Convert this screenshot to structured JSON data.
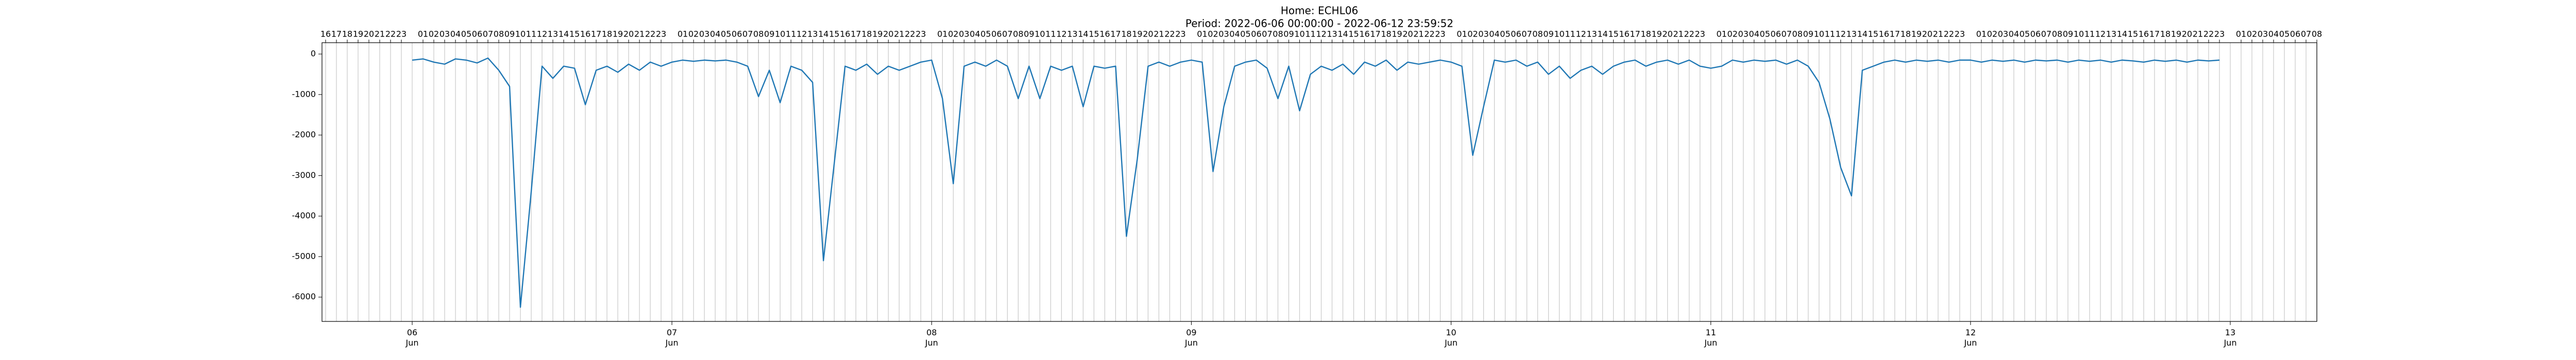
{
  "chart_data": {
    "type": "line",
    "title": "Home: ECHL06",
    "subtitle": "Period: 2022-06-06 00:00:00 - 2022-06-12 23:59:52",
    "color": "#1f77b4",
    "grid": true,
    "xlim": [
      "Jun 05 15:40",
      "Jun 13 08:00"
    ],
    "ylim": [
      -6600,
      280
    ],
    "yticks": [
      0,
      -1000,
      -2000,
      -3000,
      -4000,
      -5000,
      -6000
    ],
    "xticks": [
      {
        "value": "Jun 06 00:00",
        "label": "06\nJun"
      },
      {
        "value": "Jun 07 00:00",
        "label": "07\nJun"
      },
      {
        "value": "Jun 08 00:00",
        "label": "08\nJun"
      },
      {
        "value": "Jun 09 00:00",
        "label": "09\nJun"
      },
      {
        "value": "Jun 10 00:00",
        "label": "10\nJun"
      },
      {
        "value": "Jun 11 00:00",
        "label": "11\nJun"
      },
      {
        "value": "Jun 12 00:00",
        "label": "12\nJun"
      },
      {
        "value": "Jun 13 00:00",
        "label": "13\nJun"
      }
    ],
    "x2ticks": [
      {
        "value": "Jun 05 16:00",
        "label": "16"
      },
      {
        "value": "Jun 05 17:00",
        "label": "17"
      },
      {
        "value": "Jun 05 18:00",
        "label": "18"
      },
      {
        "value": "Jun 05 19:00",
        "label": "19"
      },
      {
        "value": "Jun 05 20:00",
        "label": "20"
      },
      {
        "value": "Jun 05 21:00",
        "label": "21"
      },
      {
        "value": "Jun 05 22:00",
        "label": "22"
      },
      {
        "value": "Jun 05 23:00",
        "label": "23"
      },
      {
        "value": "Jun 06 01:00",
        "label": "01"
      },
      {
        "value": "Jun 06 02:00",
        "label": "02"
      },
      {
        "value": "Jun 06 03:00",
        "label": "03"
      },
      {
        "value": "Jun 06 04:00",
        "label": "04"
      },
      {
        "value": "Jun 06 05:00",
        "label": "05"
      },
      {
        "value": "Jun 06 06:00",
        "label": "06"
      },
      {
        "value": "Jun 06 07:00",
        "label": "07"
      },
      {
        "value": "Jun 06 08:00",
        "label": "08"
      },
      {
        "value": "Jun 06 09:00",
        "label": "09"
      },
      {
        "value": "Jun 06 10:00",
        "label": "10"
      },
      {
        "value": "Jun 06 11:00",
        "label": "11"
      },
      {
        "value": "Jun 06 12:00",
        "label": "12"
      },
      {
        "value": "Jun 06 13:00",
        "label": "13"
      },
      {
        "value": "Jun 06 14:00",
        "label": "14"
      },
      {
        "value": "Jun 06 15:00",
        "label": "15"
      },
      {
        "value": "Jun 06 16:00",
        "label": "16"
      },
      {
        "value": "Jun 06 17:00",
        "label": "17"
      },
      {
        "value": "Jun 06 18:00",
        "label": "18"
      },
      {
        "value": "Jun 06 19:00",
        "label": "19"
      },
      {
        "value": "Jun 06 20:00",
        "label": "20"
      },
      {
        "value": "Jun 06 21:00",
        "label": "21"
      },
      {
        "value": "Jun 06 22:00",
        "label": "22"
      },
      {
        "value": "Jun 06 23:00",
        "label": "23"
      },
      {
        "value": "Jun 07 01:00",
        "label": "01"
      },
      {
        "value": "Jun 07 02:00",
        "label": "02"
      },
      {
        "value": "Jun 07 03:00",
        "label": "03"
      },
      {
        "value": "Jun 07 04:00",
        "label": "04"
      },
      {
        "value": "Jun 07 05:00",
        "label": "05"
      },
      {
        "value": "Jun 07 06:00",
        "label": "06"
      },
      {
        "value": "Jun 07 07:00",
        "label": "07"
      },
      {
        "value": "Jun 07 08:00",
        "label": "08"
      },
      {
        "value": "Jun 07 09:00",
        "label": "09"
      },
      {
        "value": "Jun 07 10:00",
        "label": "10"
      },
      {
        "value": "Jun 07 11:00",
        "label": "11"
      },
      {
        "value": "Jun 07 12:00",
        "label": "12"
      },
      {
        "value": "Jun 07 13:00",
        "label": "13"
      },
      {
        "value": "Jun 07 14:00",
        "label": "14"
      },
      {
        "value": "Jun 07 15:00",
        "label": "15"
      },
      {
        "value": "Jun 07 16:00",
        "label": "16"
      },
      {
        "value": "Jun 07 17:00",
        "label": "17"
      },
      {
        "value": "Jun 07 18:00",
        "label": "18"
      },
      {
        "value": "Jun 07 19:00",
        "label": "19"
      },
      {
        "value": "Jun 07 20:00",
        "label": "20"
      },
      {
        "value": "Jun 07 21:00",
        "label": "21"
      },
      {
        "value": "Jun 07 22:00",
        "label": "22"
      },
      {
        "value": "Jun 07 23:00",
        "label": "23"
      },
      {
        "value": "Jun 08 01:00",
        "label": "01"
      },
      {
        "value": "Jun 08 02:00",
        "label": "02"
      },
      {
        "value": "Jun 08 03:00",
        "label": "03"
      },
      {
        "value": "Jun 08 04:00",
        "label": "04"
      },
      {
        "value": "Jun 08 05:00",
        "label": "05"
      },
      {
        "value": "Jun 08 06:00",
        "label": "06"
      },
      {
        "value": "Jun 08 07:00",
        "label": "07"
      },
      {
        "value": "Jun 08 08:00",
        "label": "08"
      },
      {
        "value": "Jun 08 09:00",
        "label": "09"
      },
      {
        "value": "Jun 08 10:00",
        "label": "10"
      },
      {
        "value": "Jun 08 11:00",
        "label": "11"
      },
      {
        "value": "Jun 08 12:00",
        "label": "12"
      },
      {
        "value": "Jun 08 13:00",
        "label": "13"
      },
      {
        "value": "Jun 08 14:00",
        "label": "14"
      },
      {
        "value": "Jun 08 15:00",
        "label": "15"
      },
      {
        "value": "Jun 08 16:00",
        "label": "16"
      },
      {
        "value": "Jun 08 17:00",
        "label": "17"
      },
      {
        "value": "Jun 08 18:00",
        "label": "18"
      },
      {
        "value": "Jun 08 19:00",
        "label": "19"
      },
      {
        "value": "Jun 08 20:00",
        "label": "20"
      },
      {
        "value": "Jun 08 21:00",
        "label": "21"
      },
      {
        "value": "Jun 08 22:00",
        "label": "22"
      },
      {
        "value": "Jun 08 23:00",
        "label": "23"
      },
      {
        "value": "Jun 09 01:00",
        "label": "01"
      },
      {
        "value": "Jun 09 02:00",
        "label": "02"
      },
      {
        "value": "Jun 09 03:00",
        "label": "03"
      },
      {
        "value": "Jun 09 04:00",
        "label": "04"
      },
      {
        "value": "Jun 09 05:00",
        "label": "05"
      },
      {
        "value": "Jun 09 06:00",
        "label": "06"
      },
      {
        "value": "Jun 09 07:00",
        "label": "07"
      },
      {
        "value": "Jun 09 08:00",
        "label": "08"
      },
      {
        "value": "Jun 09 09:00",
        "label": "09"
      },
      {
        "value": "Jun 09 10:00",
        "label": "10"
      },
      {
        "value": "Jun 09 11:00",
        "label": "11"
      },
      {
        "value": "Jun 09 12:00",
        "label": "12"
      },
      {
        "value": "Jun 09 13:00",
        "label": "13"
      },
      {
        "value": "Jun 09 14:00",
        "label": "14"
      },
      {
        "value": "Jun 09 15:00",
        "label": "15"
      },
      {
        "value": "Jun 09 16:00",
        "label": "16"
      },
      {
        "value": "Jun 09 17:00",
        "label": "17"
      },
      {
        "value": "Jun 09 18:00",
        "label": "18"
      },
      {
        "value": "Jun 09 19:00",
        "label": "19"
      },
      {
        "value": "Jun 09 20:00",
        "label": "20"
      },
      {
        "value": "Jun 09 21:00",
        "label": "21"
      },
      {
        "value": "Jun 09 22:00",
        "label": "22"
      },
      {
        "value": "Jun 09 23:00",
        "label": "23"
      },
      {
        "value": "Jun 10 01:00",
        "label": "01"
      },
      {
        "value": "Jun 10 02:00",
        "label": "02"
      },
      {
        "value": "Jun 10 03:00",
        "label": "03"
      },
      {
        "value": "Jun 10 04:00",
        "label": "04"
      },
      {
        "value": "Jun 10 05:00",
        "label": "05"
      },
      {
        "value": "Jun 10 06:00",
        "label": "06"
      },
      {
        "value": "Jun 10 07:00",
        "label": "07"
      },
      {
        "value": "Jun 10 08:00",
        "label": "08"
      },
      {
        "value": "Jun 10 09:00",
        "label": "09"
      },
      {
        "value": "Jun 10 10:00",
        "label": "10"
      },
      {
        "value": "Jun 10 11:00",
        "label": "11"
      },
      {
        "value": "Jun 10 12:00",
        "label": "12"
      },
      {
        "value": "Jun 10 13:00",
        "label": "13"
      },
      {
        "value": "Jun 10 14:00",
        "label": "14"
      },
      {
        "value": "Jun 10 15:00",
        "label": "15"
      },
      {
        "value": "Jun 10 16:00",
        "label": "16"
      },
      {
        "value": "Jun 10 17:00",
        "label": "17"
      },
      {
        "value": "Jun 10 18:00",
        "label": "18"
      },
      {
        "value": "Jun 10 19:00",
        "label": "19"
      },
      {
        "value": "Jun 10 20:00",
        "label": "20"
      },
      {
        "value": "Jun 10 21:00",
        "label": "21"
      },
      {
        "value": "Jun 10 22:00",
        "label": "22"
      },
      {
        "value": "Jun 10 23:00",
        "label": "23"
      },
      {
        "value": "Jun 11 01:00",
        "label": "01"
      },
      {
        "value": "Jun 11 02:00",
        "label": "02"
      },
      {
        "value": "Jun 11 03:00",
        "label": "03"
      },
      {
        "value": "Jun 11 04:00",
        "label": "04"
      },
      {
        "value": "Jun 11 05:00",
        "label": "05"
      },
      {
        "value": "Jun 11 06:00",
        "label": "06"
      },
      {
        "value": "Jun 11 07:00",
        "label": "07"
      },
      {
        "value": "Jun 11 08:00",
        "label": "08"
      },
      {
        "value": "Jun 11 09:00",
        "label": "09"
      },
      {
        "value": "Jun 11 10:00",
        "label": "10"
      },
      {
        "value": "Jun 11 11:00",
        "label": "11"
      },
      {
        "value": "Jun 11 12:00",
        "label": "12"
      },
      {
        "value": "Jun 11 13:00",
        "label": "13"
      },
      {
        "value": "Jun 11 14:00",
        "label": "14"
      },
      {
        "value": "Jun 11 15:00",
        "label": "15"
      },
      {
        "value": "Jun 11 16:00",
        "label": "16"
      },
      {
        "value": "Jun 11 17:00",
        "label": "17"
      },
      {
        "value": "Jun 11 18:00",
        "label": "18"
      },
      {
        "value": "Jun 11 19:00",
        "label": "19"
      },
      {
        "value": "Jun 11 20:00",
        "label": "20"
      },
      {
        "value": "Jun 11 21:00",
        "label": "21"
      },
      {
        "value": "Jun 11 22:00",
        "label": "22"
      },
      {
        "value": "Jun 11 23:00",
        "label": "23"
      },
      {
        "value": "Jun 12 01:00",
        "label": "01"
      },
      {
        "value": "Jun 12 02:00",
        "label": "02"
      },
      {
        "value": "Jun 12 03:00",
        "label": "03"
      },
      {
        "value": "Jun 12 04:00",
        "label": "04"
      },
      {
        "value": "Jun 12 05:00",
        "label": "05"
      },
      {
        "value": "Jun 12 06:00",
        "label": "06"
      },
      {
        "value": "Jun 12 07:00",
        "label": "07"
      },
      {
        "value": "Jun 12 08:00",
        "label": "08"
      },
      {
        "value": "Jun 12 09:00",
        "label": "09"
      },
      {
        "value": "Jun 12 10:00",
        "label": "10"
      },
      {
        "value": "Jun 12 11:00",
        "label": "11"
      },
      {
        "value": "Jun 12 12:00",
        "label": "12"
      },
      {
        "value": "Jun 12 13:00",
        "label": "13"
      },
      {
        "value": "Jun 12 14:00",
        "label": "14"
      },
      {
        "value": "Jun 12 15:00",
        "label": "15"
      },
      {
        "value": "Jun 12 16:00",
        "label": "16"
      },
      {
        "value": "Jun 12 17:00",
        "label": "17"
      },
      {
        "value": "Jun 12 18:00",
        "label": "18"
      },
      {
        "value": "Jun 12 19:00",
        "label": "19"
      },
      {
        "value": "Jun 12 20:00",
        "label": "20"
      },
      {
        "value": "Jun 12 21:00",
        "label": "21"
      },
      {
        "value": "Jun 12 22:00",
        "label": "22"
      },
      {
        "value": "Jun 12 23:00",
        "label": "23"
      },
      {
        "value": "Jun 13 01:00",
        "label": "01"
      },
      {
        "value": "Jun 13 02:00",
        "label": "02"
      },
      {
        "value": "Jun 13 03:00",
        "label": "03"
      },
      {
        "value": "Jun 13 04:00",
        "label": "04"
      },
      {
        "value": "Jun 13 05:00",
        "label": "05"
      },
      {
        "value": "Jun 13 06:00",
        "label": "06"
      },
      {
        "value": "Jun 13 07:00",
        "label": "07"
      },
      {
        "value": "Jun 13 08:00",
        "label": "08"
      }
    ],
    "x": [
      "Jun 06 00:00",
      "Jun 06 01:00",
      "Jun 06 02:00",
      "Jun 06 03:00",
      "Jun 06 04:00",
      "Jun 06 05:00",
      "Jun 06 06:00",
      "Jun 06 07:00",
      "Jun 06 08:00",
      "Jun 06 09:00",
      "Jun 06 10:00",
      "Jun 06 11:00",
      "Jun 06 12:00",
      "Jun 06 13:00",
      "Jun 06 14:00",
      "Jun 06 15:00",
      "Jun 06 16:00",
      "Jun 06 17:00",
      "Jun 06 18:00",
      "Jun 06 19:00",
      "Jun 06 20:00",
      "Jun 06 21:00",
      "Jun 06 22:00",
      "Jun 06 23:00",
      "Jun 07 00:00",
      "Jun 07 01:00",
      "Jun 07 02:00",
      "Jun 07 03:00",
      "Jun 07 04:00",
      "Jun 07 05:00",
      "Jun 07 06:00",
      "Jun 07 07:00",
      "Jun 07 08:00",
      "Jun 07 09:00",
      "Jun 07 10:00",
      "Jun 07 11:00",
      "Jun 07 12:00",
      "Jun 07 13:00",
      "Jun 07 14:00",
      "Jun 07 15:00",
      "Jun 07 16:00",
      "Jun 07 17:00",
      "Jun 07 18:00",
      "Jun 07 19:00",
      "Jun 07 20:00",
      "Jun 07 21:00",
      "Jun 07 22:00",
      "Jun 07 23:00",
      "Jun 08 00:00",
      "Jun 08 01:00",
      "Jun 08 02:00",
      "Jun 08 03:00",
      "Jun 08 04:00",
      "Jun 08 05:00",
      "Jun 08 06:00",
      "Jun 08 07:00",
      "Jun 08 08:00",
      "Jun 08 09:00",
      "Jun 08 10:00",
      "Jun 08 11:00",
      "Jun 08 12:00",
      "Jun 08 13:00",
      "Jun 08 14:00",
      "Jun 08 15:00",
      "Jun 08 16:00",
      "Jun 08 17:00",
      "Jun 08 18:00",
      "Jun 08 19:00",
      "Jun 08 20:00",
      "Jun 08 21:00",
      "Jun 08 22:00",
      "Jun 08 23:00",
      "Jun 09 00:00",
      "Jun 09 01:00",
      "Jun 09 02:00",
      "Jun 09 03:00",
      "Jun 09 04:00",
      "Jun 09 05:00",
      "Jun 09 06:00",
      "Jun 09 07:00",
      "Jun 09 08:00",
      "Jun 09 09:00",
      "Jun 09 10:00",
      "Jun 09 11:00",
      "Jun 09 12:00",
      "Jun 09 13:00",
      "Jun 09 14:00",
      "Jun 09 15:00",
      "Jun 09 16:00",
      "Jun 09 17:00",
      "Jun 09 18:00",
      "Jun 09 19:00",
      "Jun 09 20:00",
      "Jun 09 21:00",
      "Jun 09 22:00",
      "Jun 09 23:00",
      "Jun 10 00:00",
      "Jun 10 01:00",
      "Jun 10 02:00",
      "Jun 10 03:00",
      "Jun 10 04:00",
      "Jun 10 05:00",
      "Jun 10 06:00",
      "Jun 10 07:00",
      "Jun 10 08:00",
      "Jun 10 09:00",
      "Jun 10 10:00",
      "Jun 10 11:00",
      "Jun 10 12:00",
      "Jun 10 13:00",
      "Jun 10 14:00",
      "Jun 10 15:00",
      "Jun 10 16:00",
      "Jun 10 17:00",
      "Jun 10 18:00",
      "Jun 10 19:00",
      "Jun 10 20:00",
      "Jun 10 21:00",
      "Jun 10 22:00",
      "Jun 10 23:00",
      "Jun 11 00:00",
      "Jun 11 01:00",
      "Jun 11 02:00",
      "Jun 11 03:00",
      "Jun 11 04:00",
      "Jun 11 05:00",
      "Jun 11 06:00",
      "Jun 11 07:00",
      "Jun 11 08:00",
      "Jun 11 09:00",
      "Jun 11 10:00",
      "Jun 11 11:00",
      "Jun 11 12:00",
      "Jun 11 13:00",
      "Jun 11 14:00",
      "Jun 11 15:00",
      "Jun 11 16:00",
      "Jun 11 17:00",
      "Jun 11 18:00",
      "Jun 11 19:00",
      "Jun 11 20:00",
      "Jun 11 21:00",
      "Jun 11 22:00",
      "Jun 11 23:00",
      "Jun 12 00:00",
      "Jun 12 01:00",
      "Jun 12 02:00",
      "Jun 12 03:00",
      "Jun 12 04:00",
      "Jun 12 05:00",
      "Jun 12 06:00",
      "Jun 12 07:00",
      "Jun 12 08:00",
      "Jun 12 09:00",
      "Jun 12 10:00",
      "Jun 12 11:00",
      "Jun 12 12:00",
      "Jun 12 13:00",
      "Jun 12 14:00",
      "Jun 12 15:00",
      "Jun 12 16:00",
      "Jun 12 17:00",
      "Jun 12 18:00",
      "Jun 12 19:00",
      "Jun 12 20:00",
      "Jun 12 21:00",
      "Jun 12 22:00",
      "Jun 12 23:00"
    ],
    "values": [
      -150,
      -120,
      -200,
      -250,
      -120,
      -150,
      -220,
      -100,
      -400,
      -800,
      -6250,
      -3400,
      -300,
      -600,
      -300,
      -350,
      -1250,
      -400,
      -300,
      -450,
      -250,
      -400,
      -200,
      -300,
      -200,
      -150,
      -180,
      -150,
      -170,
      -150,
      -200,
      -300,
      -1050,
      -400,
      -1200,
      -300,
      -400,
      -700,
      -5100,
      -2700,
      -300,
      -400,
      -250,
      -500,
      -300,
      -400,
      -300,
      -200,
      -150,
      -1100,
      -3200,
      -300,
      -200,
      -300,
      -150,
      -300,
      -1100,
      -300,
      -1100,
      -300,
      -400,
      -300,
      -1300,
      -300,
      -350,
      -300,
      -4500,
      -2600,
      -300,
      -200,
      -300,
      -200,
      -150,
      -200,
      -2900,
      -1300,
      -300,
      -200,
      -150,
      -350,
      -1100,
      -300,
      -1400,
      -500,
      -300,
      -400,
      -250,
      -500,
      -200,
      -300,
      -150,
      -400,
      -200,
      -250,
      -200,
      -150,
      -200,
      -300,
      -2500,
      -1300,
      -150,
      -200,
      -150,
      -300,
      -200,
      -500,
      -300,
      -600,
      -400,
      -300,
      -500,
      -300,
      -200,
      -150,
      -300,
      -200,
      -150,
      -250,
      -150,
      -300,
      -350,
      -300,
      -150,
      -200,
      -150,
      -180,
      -150,
      -250,
      -150,
      -300,
      -700,
      -1600,
      -2800,
      -3500,
      -400,
      -300,
      -200,
      -150,
      -200,
      -150,
      -180,
      -150,
      -200,
      -150,
      -150,
      -200,
      -150,
      -180,
      -150,
      -200,
      -150,
      -170,
      -150,
      -200,
      -150,
      -180,
      -150,
      -200,
      -150,
      -170,
      -200,
      -150,
      -180,
      -150,
      -200,
      -150,
      -170,
      -150
    ]
  }
}
